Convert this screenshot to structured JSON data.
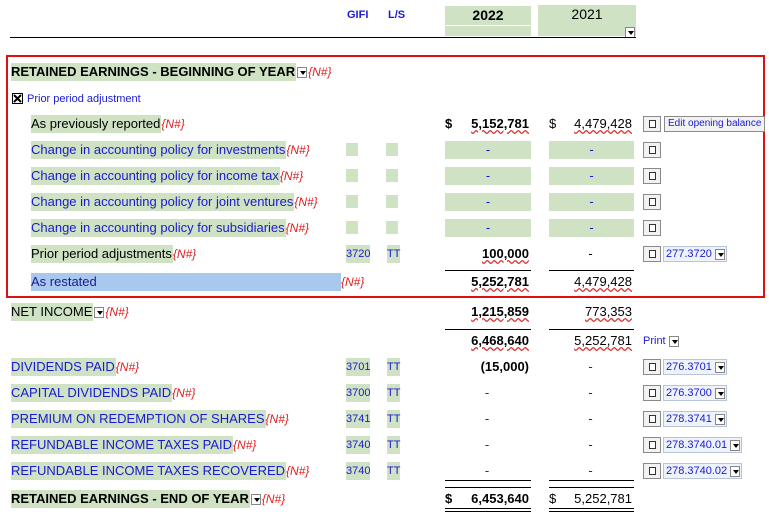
{
  "header": {
    "gifi": "GIFI",
    "ls": "L/S",
    "year_current": "2022",
    "year_prior": "2021"
  },
  "prior_period_checkbox": {
    "label": "Prior period adjustment"
  },
  "rows": [
    {
      "label": "RETAINED EARNINGS - BEGINNING OF YEAR",
      "marker": "{N#}"
    },
    {
      "label": "As previously reported",
      "marker": "{N#}",
      "current_currency": "$",
      "current": "5,152,781",
      "prior_currency": "$",
      "prior": "4,479,428",
      "button": "Edit opening balance"
    },
    {
      "label": "Change in accounting policy for investments",
      "marker": "{N#}",
      "current": "-",
      "prior": "-"
    },
    {
      "label": "Change in accounting policy for income tax",
      "marker": "{N#}",
      "current": "-",
      "prior": "-"
    },
    {
      "label": "Change in accounting policy for joint ventures",
      "marker": "{N#}",
      "current": "-",
      "prior": "-"
    },
    {
      "label": "Change in accounting policy for subsidiaries",
      "marker": "{N#}",
      "current": "-",
      "prior": "-"
    },
    {
      "label": "Prior period adjustments",
      "marker": "{N#}",
      "gifi": "3720",
      "ls": "TT",
      "current": "100,000",
      "prior": "-",
      "link": "277.3720"
    },
    {
      "label": "As restated",
      "marker": "{N#}",
      "current": "5,252,781",
      "prior": "4,479,428"
    },
    {
      "label": "NET INCOME",
      "marker": "{N#}",
      "current": "1,215,859",
      "prior": "773,353"
    },
    {
      "current": "6,468,640",
      "prior": "5,252,781",
      "button": "Print"
    },
    {
      "label": "DIVIDENDS PAID",
      "marker": "{N#}",
      "gifi": "3701",
      "ls": "TT",
      "current": "(15,000)",
      "prior": "-",
      "link": "276.3701"
    },
    {
      "label": "CAPITAL DIVIDENDS PAID",
      "marker": "{N#}",
      "gifi": "3700",
      "ls": "TT",
      "current": "-",
      "prior": "-",
      "link": "276.3700"
    },
    {
      "label": "PREMIUM ON REDEMPTION OF SHARES",
      "marker": "{N#}",
      "gifi": "3741",
      "ls": "TT",
      "current": "-",
      "prior": "-",
      "link": "278.3741"
    },
    {
      "label": "REFUNDABLE INCOME TAXES PAID",
      "marker": "{N#}",
      "gifi": "3740",
      "ls": "TT",
      "current": "-",
      "prior": "-",
      "link": "278.3740.01"
    },
    {
      "label": "REFUNDABLE INCOME TAXES RECOVERED",
      "marker": "{N#}",
      "gifi": "3740",
      "ls": "TT",
      "current": "-",
      "prior": "-",
      "link": "278.3740.02"
    },
    {
      "label": "RETAINED EARNINGS - END OF YEAR",
      "marker": "{N#}",
      "current_currency": "$",
      "current": "6,453,640",
      "prior_currency": "$",
      "prior": "5,252,781"
    }
  ]
}
